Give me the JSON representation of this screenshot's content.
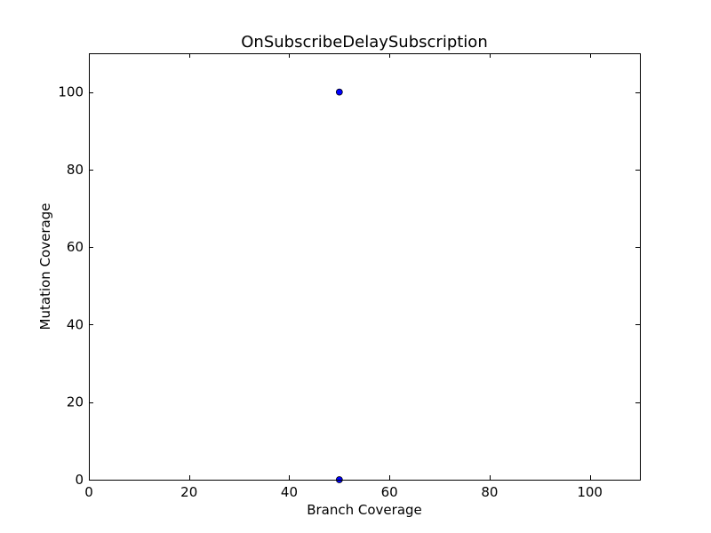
{
  "chart_data": {
    "type": "scatter",
    "title": "OnSubscribeDelaySubscription",
    "xlabel": "Branch Coverage",
    "ylabel": "Mutation Coverage",
    "xlim": [
      0,
      110
    ],
    "ylim": [
      0,
      110
    ],
    "xticks": [
      0,
      20,
      40,
      60,
      80,
      100
    ],
    "yticks": [
      0,
      20,
      40,
      60,
      80,
      100
    ],
    "grid": false,
    "series": [
      {
        "name": "coverage",
        "color": "#0000ff",
        "points": [
          {
            "x": 50,
            "y": 100
          },
          {
            "x": 50,
            "y": 0
          }
        ]
      }
    ]
  }
}
